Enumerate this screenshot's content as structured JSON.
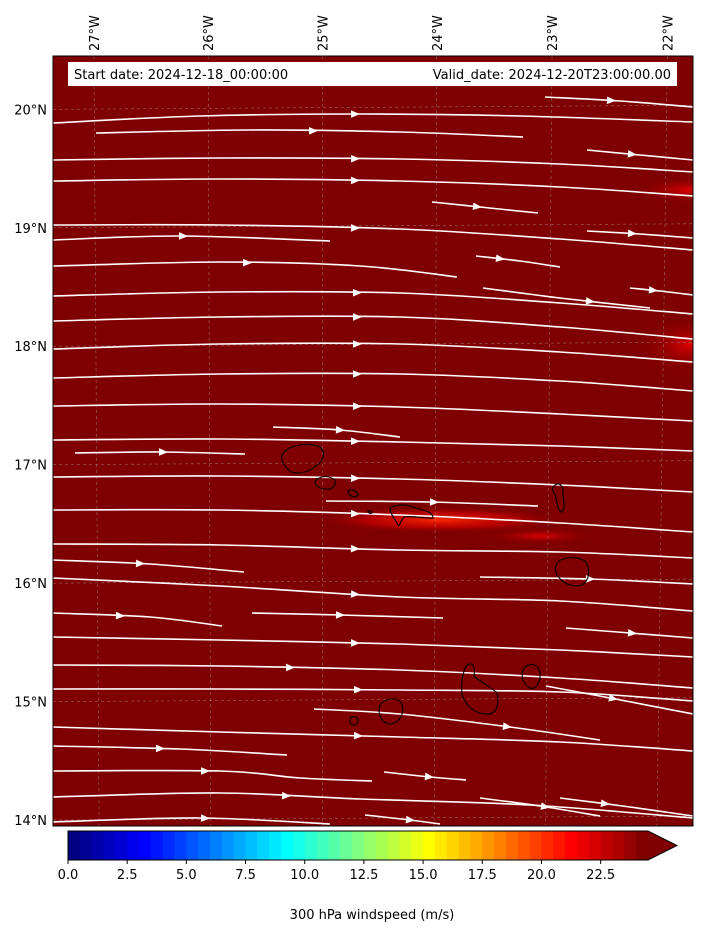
{
  "map": {
    "start_label": "Start date: 2024-12-18_00:00:00",
    "valid_label": "Valid_date: 2024-12-20T23:00:00.00",
    "field_color": "#7f0000",
    "streamline_color": "#ffffff",
    "coastline_color": "#000000",
    "lon_ticks": [
      "27°W",
      "26°W",
      "25°W",
      "24°W",
      "23°W",
      "22°W"
    ],
    "lat_ticks": [
      "20°N",
      "19°N",
      "18°N",
      "17°N",
      "16°N",
      "15°N",
      "14°N"
    ],
    "lon_range": [
      -27.4,
      -21.7
    ],
    "lat_range": [
      13.95,
      20.45
    ]
  },
  "colorbar": {
    "label": "300 hPa windspeed (m/s)",
    "ticks": [
      "0.0",
      "2.5",
      "5.0",
      "7.5",
      "10.0",
      "12.5",
      "15.0",
      "17.5",
      "20.0",
      "22.5"
    ],
    "range": [
      0,
      24.5
    ],
    "extend": "max",
    "colormap": "jet"
  }
}
